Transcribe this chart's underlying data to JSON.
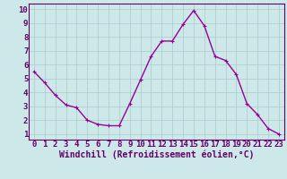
{
  "x": [
    0,
    1,
    2,
    3,
    4,
    5,
    6,
    7,
    8,
    9,
    10,
    11,
    12,
    13,
    14,
    15,
    16,
    17,
    18,
    19,
    20,
    21,
    22,
    23
  ],
  "y": [
    5.5,
    4.7,
    3.8,
    3.1,
    2.9,
    2.0,
    1.7,
    1.6,
    1.6,
    3.2,
    4.9,
    6.6,
    7.7,
    7.7,
    8.9,
    9.9,
    8.8,
    6.6,
    6.3,
    5.3,
    3.2,
    2.4,
    1.4,
    1.0
  ],
  "line_color": "#990099",
  "marker_color": "#990099",
  "bg_color": "#cce8e8",
  "grid_color": "#aacccc",
  "xlabel": "Windchill (Refroidissement éolien,°C)",
  "xlabel_color": "#660066",
  "xtick_labels": [
    "0",
    "1",
    "2",
    "3",
    "4",
    "5",
    "6",
    "7",
    "8",
    "9",
    "10",
    "11",
    "12",
    "13",
    "14",
    "15",
    "16",
    "17",
    "18",
    "19",
    "20",
    "21",
    "22",
    "23"
  ],
  "ytick_labels": [
    "1",
    "2",
    "3",
    "4",
    "5",
    "6",
    "7",
    "8",
    "9",
    "10"
  ],
  "ylim": [
    0.6,
    10.4
  ],
  "xlim": [
    -0.5,
    23.5
  ],
  "tick_color": "#660066",
  "font_size_xlabel": 7,
  "font_size_ticks": 6.5,
  "line_width": 1.0,
  "marker_size": 2.5
}
